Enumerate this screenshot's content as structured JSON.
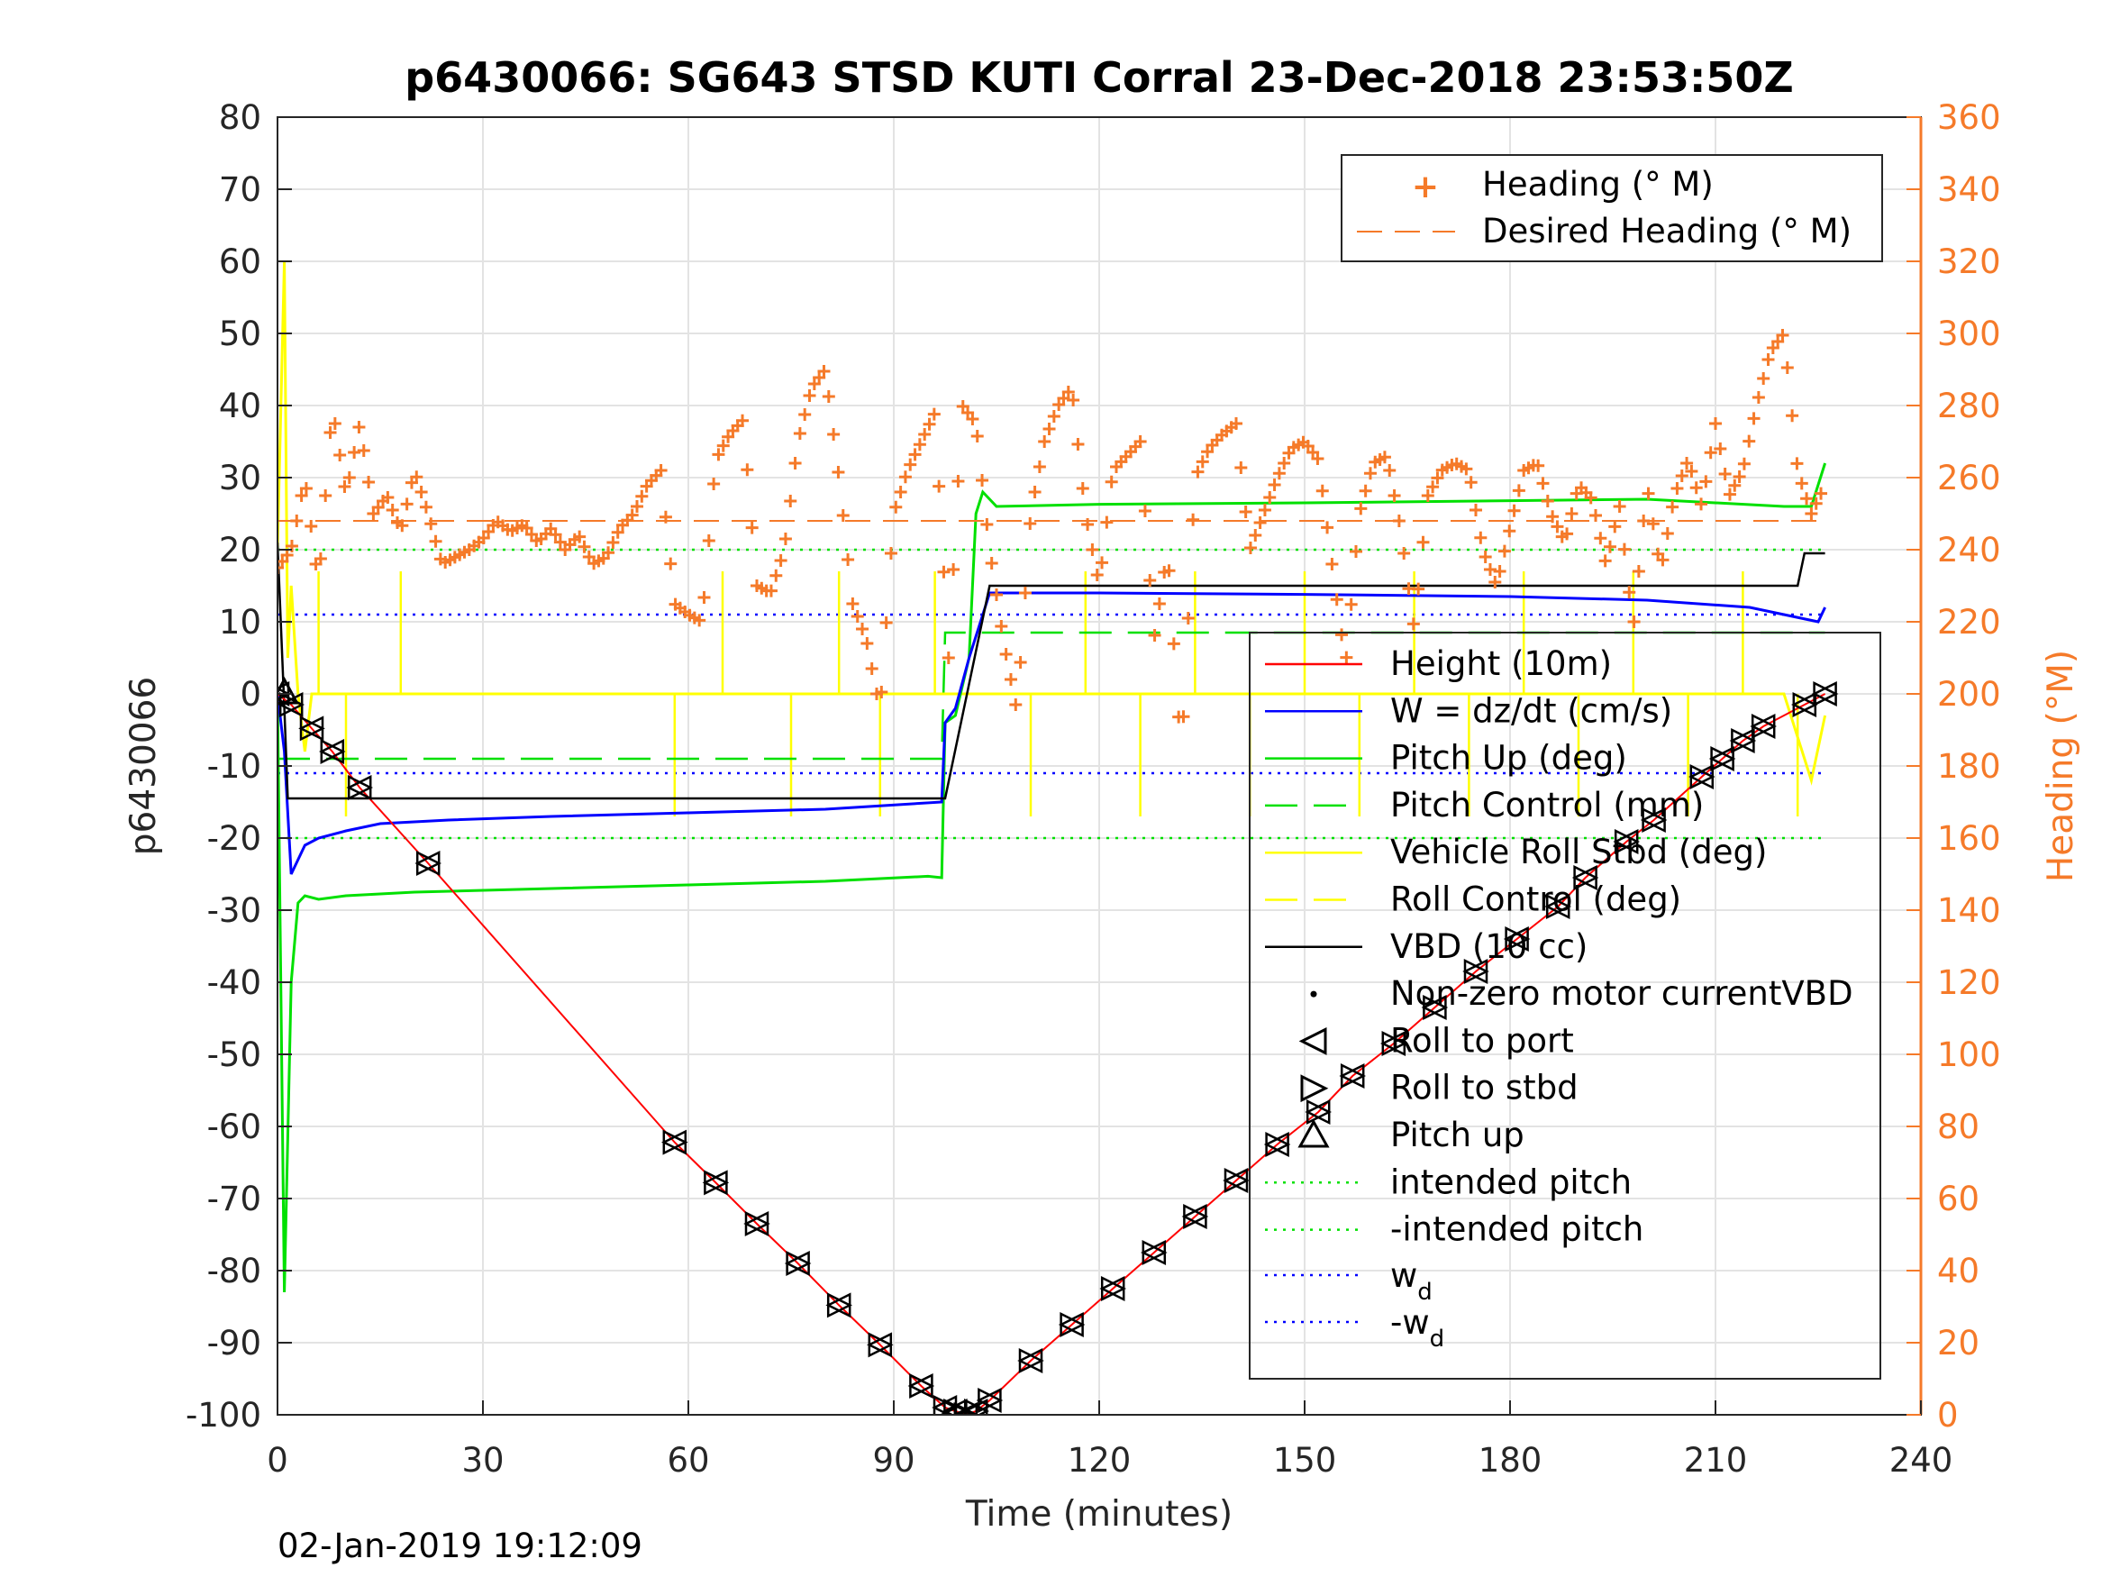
{
  "chart_data": {
    "type": "line",
    "title": "p6430066: SG643 STSD KUTI Corral 23-Dec-2018 23:53:50Z",
    "xlabel": "Time (minutes)",
    "ylabel_left": "p6430066",
    "ylabel_right": "Heading (°M)",
    "xlim": [
      0,
      240
    ],
    "ylim_left": [
      -100,
      80
    ],
    "ylim_right": [
      0,
      360
    ],
    "xticks": [
      "0",
      "30",
      "60",
      "90",
      "120",
      "150",
      "180",
      "210",
      "240"
    ],
    "yticks_left": [
      "80",
      "70",
      "60",
      "50",
      "40",
      "30",
      "20",
      "10",
      "0",
      "-10",
      "-20",
      "-30",
      "-40",
      "-50",
      "-60",
      "-70",
      "-80",
      "-90",
      "-100"
    ],
    "yticks_right": [
      "360",
      "340",
      "320",
      "300",
      "280",
      "260",
      "240",
      "220",
      "200",
      "180",
      "160",
      "140",
      "120",
      "100",
      "80",
      "60",
      "40",
      "20",
      "0"
    ],
    "grid": true,
    "timestamp": "02-Jan-2019 19:12:09",
    "colors": {
      "heading": "#f57a29",
      "height": "#ff0000",
      "w": "#0000ff",
      "pitch": "#00e000",
      "roll": "#ffff00",
      "vbd": "#000000",
      "w_d": "#0000ff"
    },
    "legend_heading": [
      "Heading (° M)",
      "Desired Heading (° M)"
    ],
    "legend_main": [
      "Height (10m)",
      "W = dz/dt (cm/s)",
      "Pitch Up (deg)",
      "Pitch Control (mm)",
      "Vehicle Roll Stbd (deg)",
      "Roll Control (deg)",
      "VBD (10 cc)",
      "Non-zero motor currentVBD",
      "Roll to port",
      "Roll to stbd",
      "Pitch up",
      "intended pitch",
      "-intended pitch"
    ],
    "legend_wd": "w",
    "legend_wd_neg": "-w",
    "legend_wd_sub": "d",
    "series": [
      {
        "name": "Height (10m)",
        "x": [
          0,
          2,
          5,
          8,
          12,
          22,
          58,
          64,
          70,
          76,
          82,
          88,
          94,
          97.5,
          99,
          100.5,
          102,
          104,
          110,
          116,
          122,
          128,
          134,
          140,
          146,
          152,
          157,
          163,
          169,
          175,
          181,
          187,
          191,
          197,
          201,
          208,
          211,
          214,
          217,
          223,
          226
        ],
        "y": [
          0,
          -1.5,
          -4.8,
          -8,
          -13,
          -23.5,
          -62.2,
          -67.8,
          -73.5,
          -79,
          -84.8,
          -90.3,
          -96,
          -99,
          -99.5,
          -100,
          -99.5,
          -98,
          -92.5,
          -87.5,
          -82.5,
          -77.5,
          -72.5,
          -67.5,
          -62.5,
          -58,
          -53,
          -48.5,
          -43.5,
          -38.5,
          -34,
          -29.5,
          -25.5,
          -20.5,
          -17.5,
          -11.5,
          -9,
          -6.5,
          -4.5,
          -1.5,
          0
        ]
      },
      {
        "name": "W = dz/dt (cm/s)",
        "x": [
          0,
          1,
          2,
          4,
          6,
          10,
          15,
          25,
          40,
          60,
          80,
          97,
          97.5,
          99,
          101,
          104,
          120,
          150,
          180,
          200,
          215,
          225,
          226
        ],
        "y": [
          0,
          -8,
          -25,
          -21,
          -20,
          -19,
          -18,
          -17.5,
          -17,
          -16.5,
          -16,
          -15,
          -4,
          -2,
          5,
          14,
          14,
          13.8,
          13.5,
          13,
          12,
          10,
          12
        ]
      },
      {
        "name": "Pitch Up (deg)",
        "x": [
          0,
          1,
          2,
          3,
          4,
          6,
          10,
          20,
          40,
          60,
          80,
          95,
          97,
          97.5,
          99,
          101,
          102,
          103,
          105,
          120,
          150,
          180,
          200,
          220,
          224,
          226
        ],
        "y": [
          0,
          -83,
          -40,
          -29,
          -28,
          -28.5,
          -28,
          -27.5,
          -27,
          -26.5,
          -26,
          -25.3,
          -25.5,
          -4,
          -3,
          5,
          25,
          28,
          26,
          26.3,
          26.5,
          26.8,
          27,
          26,
          26,
          32
        ]
      },
      {
        "name": "Pitch Control (mm)",
        "x": [
          0,
          97,
          97.5,
          226
        ],
        "y": [
          -9,
          -9,
          8.5,
          8.5
        ]
      },
      {
        "name": "Vehicle Roll Stbd (deg)",
        "x": [
          0,
          1,
          1.5,
          2,
          3,
          4,
          5,
          10,
          20,
          40,
          60,
          80,
          100,
          120,
          140,
          160,
          180,
          200,
          220,
          224,
          226
        ],
        "y": [
          20,
          60,
          5,
          15,
          0,
          -8,
          0,
          0,
          0,
          0,
          0,
          0,
          0,
          0,
          0,
          0,
          0,
          0,
          0,
          -12,
          -3
        ]
      },
      {
        "name": "VBD (10 cc)",
        "x": [
          0,
          1,
          1.5,
          2,
          97,
          97.5,
          104,
          222,
          223,
          226
        ],
        "y": [
          21,
          -2,
          -14.5,
          -14.5,
          -14.5,
          -14.5,
          15,
          15,
          19.5,
          19.5
        ]
      },
      {
        "name": "Heading (° M)",
        "axis": "right",
        "x": [
          0,
          2,
          4,
          6,
          8,
          10,
          12,
          14,
          16,
          18,
          20,
          22,
          24,
          26,
          28,
          30,
          32,
          34,
          36,
          38,
          40,
          42,
          44,
          46,
          48,
          50,
          52,
          54,
          56,
          58,
          60,
          62,
          64,
          66,
          68,
          70,
          72,
          74,
          76,
          78,
          80,
          82,
          84,
          86,
          88,
          90,
          92,
          94,
          96,
          98,
          100,
          102,
          104,
          106,
          108,
          110,
          112,
          114,
          116,
          118,
          120,
          122,
          124,
          126,
          128,
          130,
          132,
          134,
          136,
          138,
          140,
          142,
          144,
          146,
          148,
          150,
          152,
          154,
          156,
          158,
          160,
          162,
          164,
          166,
          168,
          170,
          172,
          174,
          176,
          178,
          180,
          182,
          184,
          186,
          188,
          190,
          192,
          194,
          196,
          198,
          200,
          202,
          204,
          206,
          208,
          210,
          212,
          214,
          216,
          218,
          220,
          222,
          224,
          226
        ],
        "y": [
          235,
          240,
          260,
          230,
          280,
          255,
          275,
          250,
          255,
          245,
          262,
          250,
          236,
          238,
          240,
          243,
          248,
          245,
          247,
          242,
          246,
          240,
          244,
          236,
          238,
          246,
          250,
          258,
          262,
          225,
          222,
          220,
          265,
          272,
          276,
          230,
          228,
          240,
          270,
          285,
          290,
          260,
          225,
          215,
          195,
          250,
          262,
          270,
          278,
          210,
          280,
          275,
          240,
          215,
          195,
          250,
          270,
          280,
          285,
          250,
          230,
          262,
          266,
          270,
          215,
          240,
          182,
          260,
          268,
          272,
          275,
          240,
          250,
          260,
          268,
          270,
          265,
          236,
          208,
          250,
          264,
          266,
          246,
          218,
          255,
          262,
          264,
          262,
          240,
          230,
          246,
          262,
          264,
          250,
          242,
          258,
          254,
          236,
          252,
          218,
          258,
          234,
          255,
          265,
          252,
          275,
          255,
          262,
          280,
          295,
          300,
          262,
          250,
          258
        ]
      },
      {
        "name": "Desired Heading (° M)",
        "axis": "right",
        "x": [
          0,
          226
        ],
        "y": [
          248,
          248
        ]
      }
    ]
  }
}
